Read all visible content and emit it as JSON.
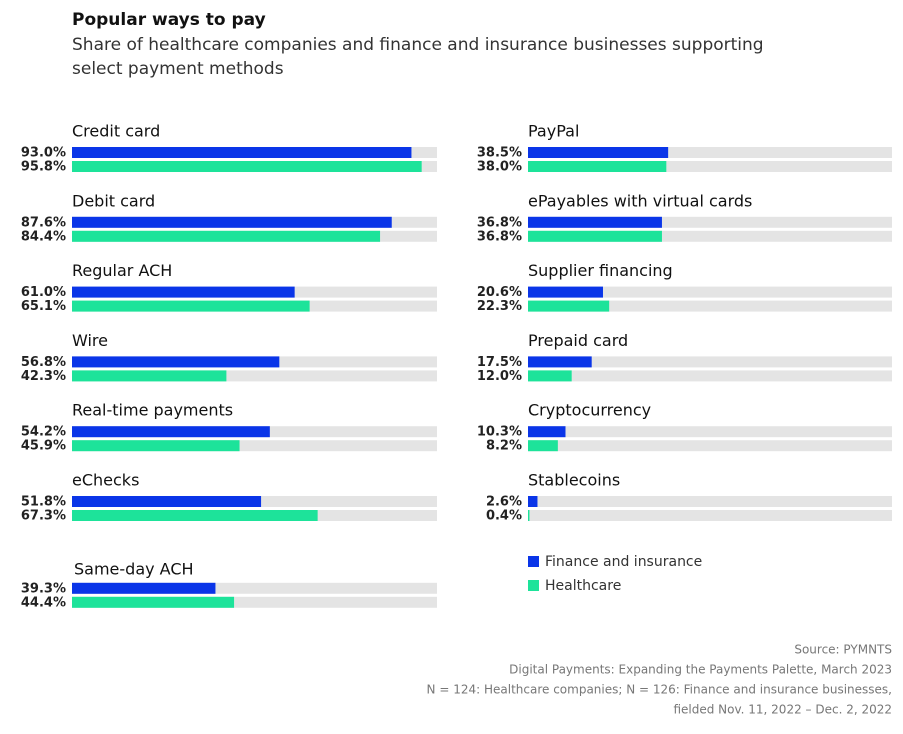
{
  "chart_data": {
    "type": "bar",
    "title": "Popular ways to pay",
    "subtitle": [
      "Share of healthcare companies and finance and insurance businesses supporting",
      "select payment methods"
    ],
    "categories": [
      "Credit card",
      "Debit card",
      "Regular ACH",
      "Wire",
      "Real-time payments",
      "eChecks",
      "Same-day ACH",
      "PayPal",
      "ePayables with virtual cards",
      "Supplier financing",
      "Prepaid card",
      "Cryptocurrency",
      "Stablecoins"
    ],
    "series": [
      {
        "name": "Finance and insurance",
        "color": "#0a35e8",
        "values": [
          93.0,
          87.6,
          61.0,
          56.8,
          54.2,
          51.8,
          39.3,
          38.5,
          36.8,
          20.6,
          17.5,
          10.3,
          2.6
        ],
        "value_labels": [
          "93.0%",
          "87.6%",
          "61.0%",
          "56.8%",
          "54.2%",
          "51.8%",
          "39.3%",
          "38.5%",
          "36.8%",
          "20.6%",
          "17.5%",
          "10.3%",
          "2.6%"
        ]
      },
      {
        "name": "Healthcare",
        "color": "#1de39a",
        "values": [
          95.8,
          84.4,
          65.1,
          42.3,
          45.9,
          67.3,
          44.4,
          38.0,
          36.8,
          22.3,
          12.0,
          8.2,
          0.4
        ],
        "value_labels": [
          "95.8%",
          "84.4%",
          "65.1%",
          "42.3%",
          "45.9%",
          "67.3%",
          "44.4%",
          "38.0%",
          "36.8%",
          "22.3%",
          "12.0%",
          "8.2%",
          "0.4%"
        ]
      }
    ],
    "xlim": [
      0,
      100
    ],
    "notes": [
      "Source: PYMNTS",
      "Digital Payments: Expanding the Payments Palette, March 2023",
      "N = 124: Healthcare companies; N = 126: Finance and insurance businesses,",
      "fielded Nov. 11, 2022 – Dec. 2, 2022"
    ]
  }
}
